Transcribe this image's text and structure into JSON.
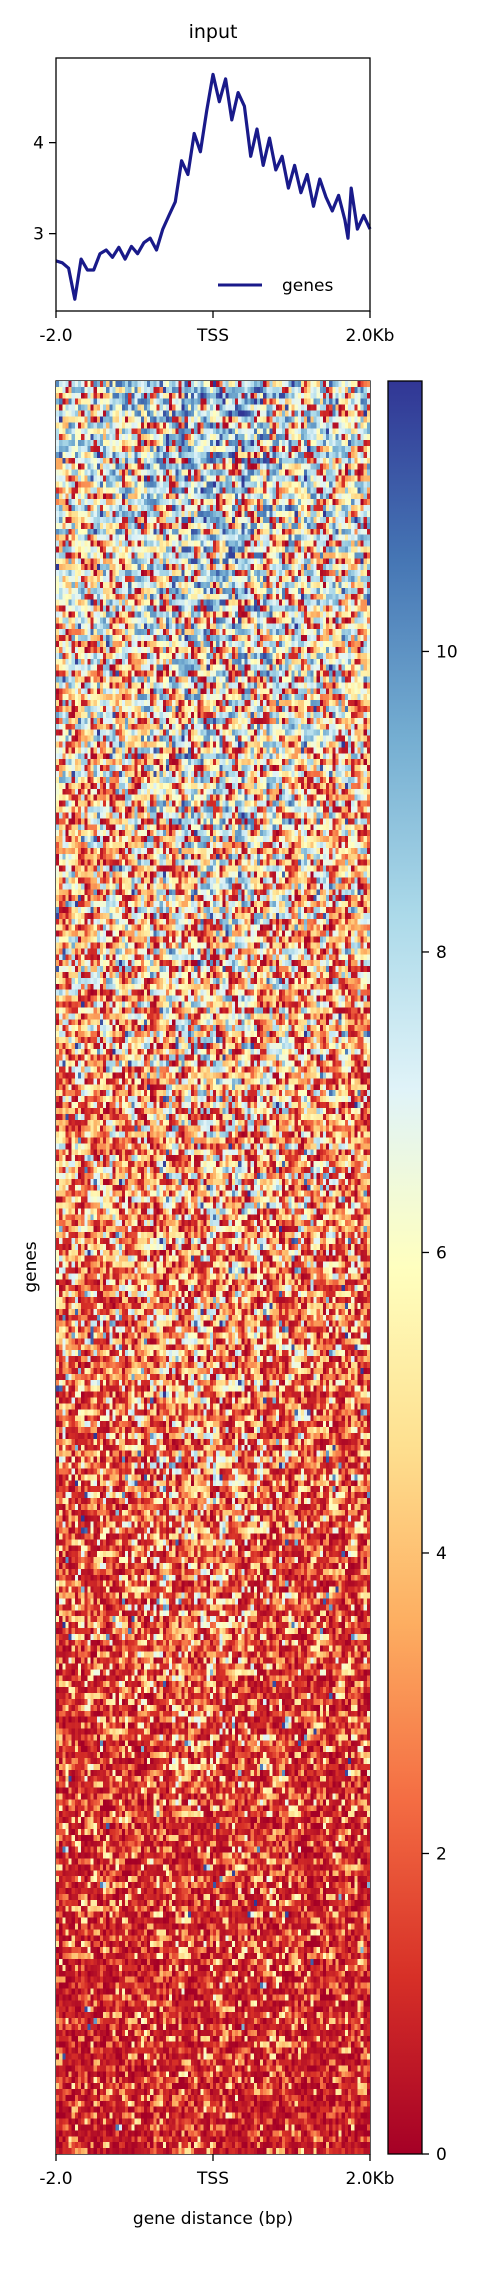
{
  "chart_data": [
    {
      "type": "line",
      "panel": "profile",
      "title": "input",
      "xlabel": "",
      "ylabel": "",
      "x_ticks": [
        "-2.0",
        "TSS",
        "2.0Kb"
      ],
      "x_tick_positions": [
        -2000,
        0,
        2000
      ],
      "xlim": [
        -2000,
        2000
      ],
      "y_ticks": [
        "3",
        "4"
      ],
      "y_tick_values": [
        3,
        4
      ],
      "ylim": [
        2.15,
        4.93
      ],
      "legend": {
        "placement": "lower-right",
        "entries": [
          "genes"
        ]
      },
      "series": [
        {
          "name": "genes",
          "color": "#191a8a",
          "x": [
            -2000,
            -1920,
            -1840,
            -1760,
            -1680,
            -1600,
            -1520,
            -1440,
            -1360,
            -1280,
            -1200,
            -1120,
            -1040,
            -960,
            -880,
            -800,
            -720,
            -640,
            -560,
            -480,
            -400,
            -320,
            -240,
            -160,
            -80,
            0,
            80,
            160,
            240,
            320,
            400,
            480,
            560,
            640,
            720,
            800,
            880,
            960,
            1040,
            1120,
            1200,
            1280,
            1360,
            1440,
            1520,
            1600,
            1680,
            1720,
            1760,
            1840,
            1920,
            2000
          ],
          "y": [
            2.7,
            2.68,
            2.62,
            2.28,
            2.72,
            2.6,
            2.6,
            2.78,
            2.82,
            2.74,
            2.85,
            2.72,
            2.86,
            2.78,
            2.9,
            2.95,
            2.82,
            3.05,
            3.2,
            3.35,
            3.8,
            3.65,
            4.1,
            3.9,
            4.35,
            4.75,
            4.45,
            4.7,
            4.25,
            4.55,
            4.4,
            3.85,
            4.15,
            3.75,
            4.05,
            3.7,
            3.85,
            3.5,
            3.75,
            3.45,
            3.65,
            3.3,
            3.6,
            3.4,
            3.25,
            3.42,
            3.15,
            2.95,
            3.5,
            3.05,
            3.2,
            3.05
          ]
        }
      ]
    },
    {
      "type": "heatmap",
      "panel": "heatmap",
      "xlabel": "gene distance (bp)",
      "ylabel": "genes",
      "x_ticks": [
        "-2.0",
        "TSS",
        "2.0Kb"
      ],
      "xlim": [
        -2000,
        2000
      ],
      "columns": 100,
      "rows": 300,
      "colormap": "RdYlBu",
      "colormap_stops": [
        "#a50026",
        "#d73027",
        "#f46d43",
        "#fdae61",
        "#fee090",
        "#ffffbf",
        "#e0f3f8",
        "#abd9e9",
        "#74add1",
        "#4575b4",
        "#313695"
      ],
      "value_range": [
        0,
        11.8
      ],
      "colorbar": {
        "ticks": [
          "0",
          "2",
          "4",
          "6",
          "8",
          "10"
        ],
        "tick_values": [
          0,
          2,
          4,
          6,
          8,
          10
        ],
        "range": [
          0,
          11.8
        ]
      }
    }
  ]
}
